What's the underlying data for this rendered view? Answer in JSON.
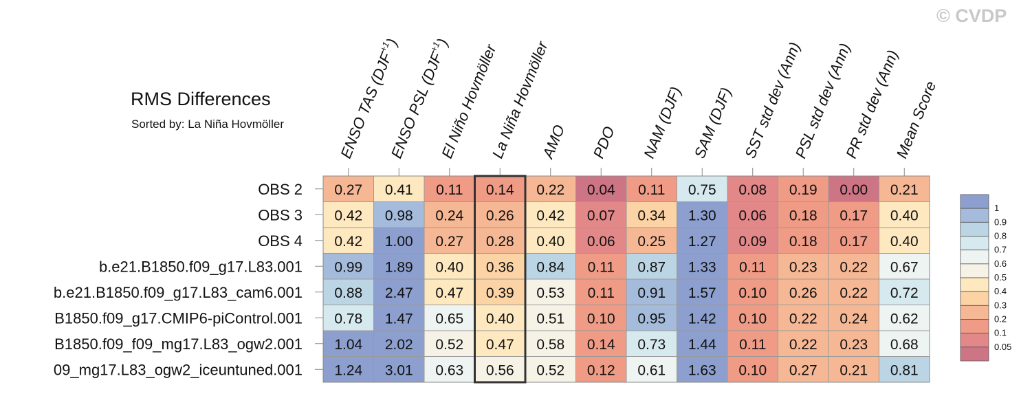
{
  "watermark": "© CVDP",
  "chart_data": {
    "type": "heatmap",
    "title": "RMS Differences",
    "subtitle": "Sorted by: La Niña Hovmöller",
    "highlighted_column": 3,
    "columns": [
      "ENSO TAS (DJF+1)",
      "ENSO PSL (DJF+1)",
      "El Niño Hovmöller",
      "La Niña Hovmöller",
      "AMO",
      "PDO",
      "NAM (DJF)",
      "SAM (DJF)",
      "SST std dev (Ann)",
      "PSL std dev (Ann)",
      "PR std dev (Ann)",
      "Mean Score"
    ],
    "rows": [
      "OBS 2",
      "OBS 3",
      "OBS 4",
      "b.e21.B1850.f09_g17.L83.001",
      "b.e21.B1850.f09_g17.L83_cam6.001",
      "B1850.f09_g17.CMIP6-piControl.001",
      "B1850.f09_f09_mg17.L83_ogw2.001",
      "09_mg17.L83_ogw2_iceuntuned.001"
    ],
    "values": [
      [
        "0.27",
        "0.41",
        "0.11",
        "0.14",
        "0.22",
        "0.04",
        "0.11",
        "0.75",
        "0.08",
        "0.19",
        "0.00",
        "0.21"
      ],
      [
        "0.42",
        "0.98",
        "0.24",
        "0.26",
        "0.42",
        "0.07",
        "0.34",
        "1.30",
        "0.06",
        "0.18",
        "0.17",
        "0.40"
      ],
      [
        "0.42",
        "1.00",
        "0.27",
        "0.28",
        "0.40",
        "0.06",
        "0.25",
        "1.27",
        "0.09",
        "0.18",
        "0.17",
        "0.40"
      ],
      [
        "0.99",
        "1.89",
        "0.40",
        "0.36",
        "0.84",
        "0.11",
        "0.87",
        "1.33",
        "0.11",
        "0.23",
        "0.22",
        "0.67"
      ],
      [
        "0.88",
        "2.47",
        "0.47",
        "0.39",
        "0.53",
        "0.11",
        "0.91",
        "1.57",
        "0.10",
        "0.26",
        "0.22",
        "0.72"
      ],
      [
        "0.78",
        "1.47",
        "0.65",
        "0.40",
        "0.51",
        "0.10",
        "0.95",
        "1.42",
        "0.10",
        "0.22",
        "0.24",
        "0.62"
      ],
      [
        "1.04",
        "2.02",
        "0.52",
        "0.47",
        "0.58",
        "0.14",
        "0.73",
        "1.44",
        "0.11",
        "0.22",
        "0.23",
        "0.68"
      ],
      [
        "1.24",
        "3.01",
        "0.63",
        "0.56",
        "0.52",
        "0.12",
        "0.61",
        "1.63",
        "0.10",
        "0.27",
        "0.21",
        "0.81"
      ]
    ],
    "colorbar": {
      "levels": [
        "1",
        "0.9",
        "0.8",
        "0.7",
        "0.6",
        "0.5",
        "0.4",
        "0.3",
        "0.2",
        "0.1",
        "0.05"
      ],
      "colors": [
        "#8c9fce",
        "#a5bbdb",
        "#bcd5e5",
        "#d5e9ee",
        "#eef4f2",
        "#f6f2e6",
        "#fde8c0",
        "#fbd3a4",
        "#f6b794",
        "#ef9b86",
        "#e28889",
        "#cd7585"
      ]
    }
  }
}
